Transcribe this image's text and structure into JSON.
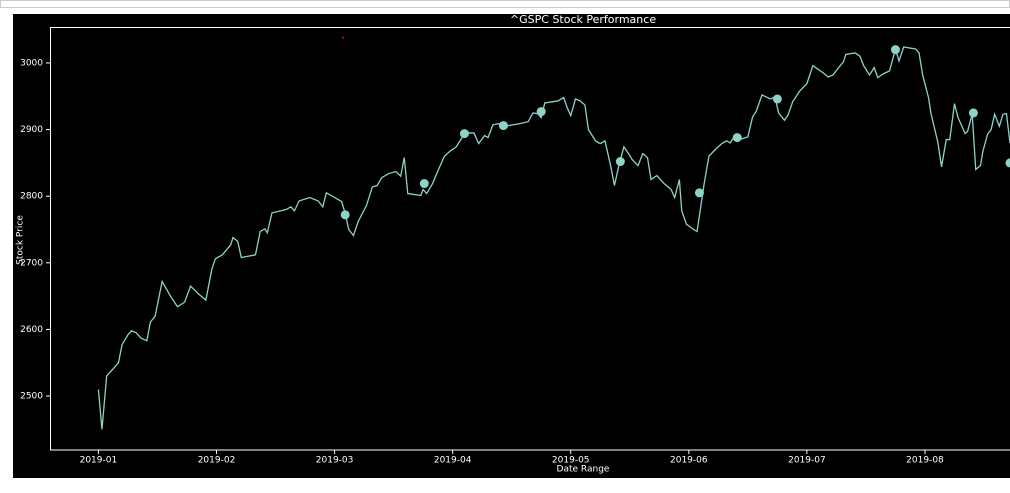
{
  "chart_data": {
    "type": "line",
    "title": "^GSPC Stock Performance",
    "xlabel": "Date Range",
    "ylabel": "Stock Price",
    "xlim": [
      -0.41,
      7.72
    ],
    "xticks": [
      {
        "value": 0,
        "label": "2019-01"
      },
      {
        "value": 1,
        "label": "2019-02"
      },
      {
        "value": 2,
        "label": "2019-03"
      },
      {
        "value": 3,
        "label": "2019-04"
      },
      {
        "value": 4,
        "label": "2019-05"
      },
      {
        "value": 5,
        "label": "2019-06"
      },
      {
        "value": 6,
        "label": "2019-07"
      },
      {
        "value": 7,
        "label": "2019-08"
      }
    ],
    "ylim": [
      2419,
      3054
    ],
    "yticks": [
      2500,
      2600,
      2700,
      2800,
      2900,
      3000
    ],
    "grid": false,
    "series": [
      {
        "kind": "line",
        "color": "#8dd3c7",
        "x": [
          0,
          0.03,
          0.07,
          0.12,
          0.17,
          0.2,
          0.25,
          0.28,
          0.32,
          0.36,
          0.41,
          0.44,
          0.48,
          0.54,
          0.61,
          0.67,
          0.73,
          0.78,
          0.85,
          0.91,
          0.96,
          0.99,
          1.05,
          1.12,
          1.14,
          1.18,
          1.21,
          1.33,
          1.37,
          1.41,
          1.43,
          1.47,
          1.59,
          1.63,
          1.66,
          1.7,
          1.79,
          1.86,
          1.9,
          1.93,
          1.99,
          2.06,
          2.09,
          2.12,
          2.16,
          2.2,
          2.27,
          2.32,
          2.36,
          2.4,
          2.46,
          2.52,
          2.56,
          2.59,
          2.62,
          2.73,
          2.75,
          2.78,
          2.83,
          2.88,
          2.93,
          2.98,
          3.03,
          3.08,
          3.13,
          3.18,
          3.22,
          3.27,
          3.3,
          3.34,
          3.39,
          3.43,
          3.47,
          3.57,
          3.64,
          3.68,
          3.72,
          3.75,
          3.78,
          3.89,
          3.94,
          3.97,
          4,
          4.04,
          4.08,
          4.12,
          4.15,
          4.21,
          4.25,
          4.29,
          4.34,
          4.37,
          4.41,
          4.45,
          4.49,
          4.52,
          4.57,
          4.61,
          4.65,
          4.68,
          4.73,
          4.79,
          4.85,
          4.88,
          4.92,
          4.94,
          4.98,
          5.04,
          5.07,
          5.13,
          5.17,
          5.23,
          5.28,
          5.32,
          5.35,
          5.38,
          5.42,
          5.45,
          5.5,
          5.54,
          5.57,
          5.62,
          5.69,
          5.73,
          5.76,
          5.81,
          5.84,
          5.88,
          5.94,
          6,
          6.05,
          6.09,
          6.14,
          6.18,
          6.22,
          6.26,
          6.31,
          6.33,
          6.41,
          6.45,
          6.48,
          6.53,
          6.57,
          6.6,
          6.65,
          6.7,
          6.75,
          6.78,
          6.82,
          6.92,
          6.95,
          6.98,
          7.03,
          7.05,
          7.11,
          7.14,
          7.18,
          7.21,
          7.25,
          7.28,
          7.34,
          7.36,
          7.4,
          7.43,
          7.47,
          7.49,
          7.53,
          7.56,
          7.59,
          7.63,
          7.66,
          7.69,
          7.72
        ],
        "values": [
          2510,
          2450,
          2530,
          2540,
          2550,
          2577,
          2592,
          2598,
          2595,
          2587,
          2583,
          2611,
          2620,
          2672,
          2650,
          2634,
          2641,
          2665,
          2653,
          2644,
          2690,
          2706,
          2712,
          2727,
          2738,
          2732,
          2708,
          2712,
          2747,
          2751,
          2745,
          2775,
          2780,
          2784,
          2778,
          2793,
          2798,
          2793,
          2784,
          2805,
          2799,
          2792,
          2774,
          2750,
          2741,
          2762,
          2786,
          2814,
          2816,
          2828,
          2834,
          2837,
          2830,
          2858,
          2804,
          2801,
          2810,
          2804,
          2819,
          2840,
          2860,
          2868,
          2874,
          2888,
          2895,
          2895,
          2879,
          2891,
          2888,
          2907,
          2909,
          2901,
          2906,
          2909,
          2912,
          2925,
          2924,
          2918,
          2940,
          2943,
          2948,
          2933,
          2921,
          2946,
          2943,
          2937,
          2900,
          2883,
          2879,
          2883,
          2844,
          2816,
          2848,
          2874,
          2864,
          2855,
          2846,
          2864,
          2858,
          2825,
          2831,
          2819,
          2810,
          2798,
          2825,
          2778,
          2758,
          2750,
          2747,
          2819,
          2860,
          2871,
          2879,
          2883,
          2880,
          2888,
          2891,
          2886,
          2889,
          2919,
          2927,
          2952,
          2946,
          2949,
          2925,
          2914,
          2922,
          2942,
          2958,
          2969,
          2996,
          2991,
          2985,
          2979,
          2982,
          2991,
          3002,
          3013,
          3015,
          3010,
          2996,
          2982,
          2993,
          2978,
          2984,
          2988,
          3021,
          3003,
          3024,
          3021,
          3015,
          2982,
          2948,
          2925,
          2880,
          2844,
          2885,
          2885,
          2939,
          2918,
          2894,
          2897,
          2923,
          2840,
          2846,
          2867,
          2893,
          2900,
          2923,
          2905,
          2923,
          2924,
          2880
        ]
      },
      {
        "kind": "scatter",
        "color": "#8dd3c7",
        "x": [
          2.09,
          2.76,
          3.1,
          3.43,
          3.75,
          4.42,
          5.09,
          5.41,
          5.75,
          6.75,
          7.41,
          7.72
        ],
        "values": [
          2772,
          2819,
          2894,
          2906,
          2927,
          2852,
          2805,
          2888,
          2946,
          3020,
          2925,
          2850
        ]
      },
      {
        "kind": "scatter",
        "color": "#ff0000",
        "x": [
          2.07
        ],
        "values": [
          3038
        ]
      }
    ]
  }
}
